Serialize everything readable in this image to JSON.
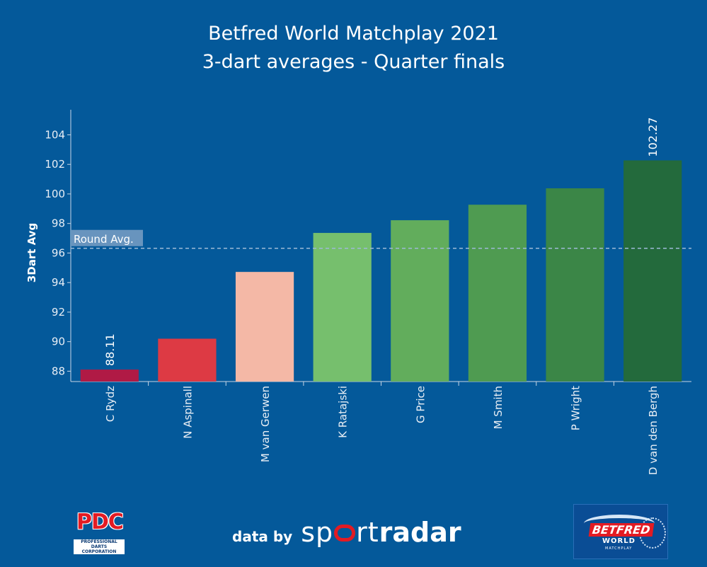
{
  "header": {
    "title_line1": "Betfred World Matchplay 2021",
    "title_line2": "3-dart averages - Quarter finals"
  },
  "chart_data": {
    "type": "bar",
    "title": "Betfred World Matchplay 2021 3-dart averages - Quarter finals",
    "xlabel": "",
    "ylabel": "3Dart Avg",
    "ylim": [
      87.3,
      105.7
    ],
    "yticks": [
      88,
      90,
      92,
      94,
      96,
      98,
      100,
      102,
      104
    ],
    "categories": [
      "C Rydz",
      "N Aspinall",
      "M van Gerwen",
      "K Ratajski",
      "G Price",
      "M Smith",
      "P Wright",
      "D van den Bergh"
    ],
    "values": [
      88.11,
      90.2,
      94.72,
      97.36,
      98.22,
      99.27,
      100.38,
      102.27
    ],
    "colors": [
      "#b01a45",
      "#dd3a44",
      "#f4b8a6",
      "#76bf6d",
      "#62ad5c",
      "#4f9b51",
      "#3b8647",
      "#236a3c"
    ],
    "data_labels": [
      {
        "category": "C Rydz",
        "text": "88.11"
      },
      {
        "category": "D van den Bergh",
        "text": "102.27"
      }
    ],
    "reference_line": {
      "label": "Round Avg.",
      "value": 96.32
    }
  },
  "footer": {
    "pdc_logo_text": "PDC",
    "pdc_logo_subtext": "PROFESSIONAL DARTS CORPORATION",
    "data_by": "data by",
    "sportradar_part1": "sp",
    "sportradar_part2": "rt",
    "sportradar_part3": "radar",
    "betfred_text": "BETFRED",
    "betfred_world": "WORLD",
    "betfred_matchplay": "MATCHPLAY"
  }
}
